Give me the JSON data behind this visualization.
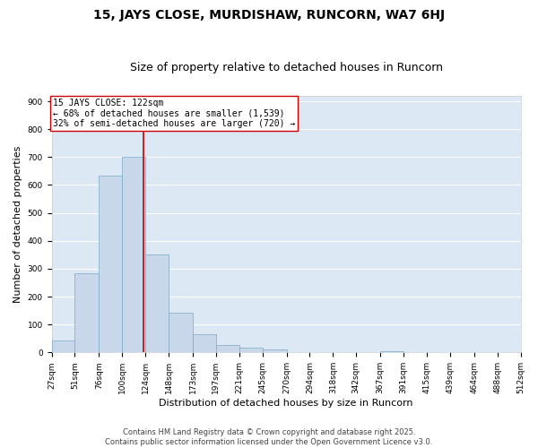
{
  "title": "15, JAYS CLOSE, MURDISHAW, RUNCORN, WA7 6HJ",
  "subtitle": "Size of property relative to detached houses in Runcorn",
  "xlabel": "Distribution of detached houses by size in Runcorn",
  "ylabel": "Number of detached properties",
  "bar_color": "#c8d8ea",
  "bar_edge_color": "#7aaac8",
  "background_color": "#dce8f4",
  "grid_color": "#ffffff",
  "fig_background": "#ffffff",
  "bin_edges": [
    27,
    51,
    76,
    100,
    124,
    148,
    173,
    197,
    221,
    245,
    270,
    294,
    318,
    342,
    367,
    391,
    415,
    439,
    464,
    488,
    512
  ],
  "bar_heights": [
    42,
    283,
    635,
    700,
    350,
    143,
    65,
    28,
    17,
    11,
    0,
    0,
    0,
    0,
    5,
    0,
    0,
    0,
    0,
    0
  ],
  "tick_labels": [
    "27sqm",
    "51sqm",
    "76sqm",
    "100sqm",
    "124sqm",
    "148sqm",
    "173sqm",
    "197sqm",
    "221sqm",
    "245sqm",
    "270sqm",
    "294sqm",
    "318sqm",
    "342sqm",
    "367sqm",
    "391sqm",
    "415sqm",
    "439sqm",
    "464sqm",
    "488sqm",
    "512sqm"
  ],
  "property_line_x": 122,
  "annotation_title": "15 JAYS CLOSE: 122sqm",
  "annotation_line1": "← 68% of detached houses are smaller (1,539)",
  "annotation_line2": "32% of semi-detached houses are larger (720) →",
  "annotation_box_color": "#ffffff",
  "annotation_border_color": "#cc0000",
  "vline_color": "#cc0000",
  "ylim": [
    0,
    920
  ],
  "yticks": [
    0,
    100,
    200,
    300,
    400,
    500,
    600,
    700,
    800,
    900
  ],
  "footer_line1": "Contains HM Land Registry data © Crown copyright and database right 2025.",
  "footer_line2": "Contains public sector information licensed under the Open Government Licence v3.0.",
  "title_fontsize": 10,
  "subtitle_fontsize": 9,
  "axis_label_fontsize": 8,
  "tick_fontsize": 6.5,
  "annotation_fontsize": 7,
  "footer_fontsize": 6
}
